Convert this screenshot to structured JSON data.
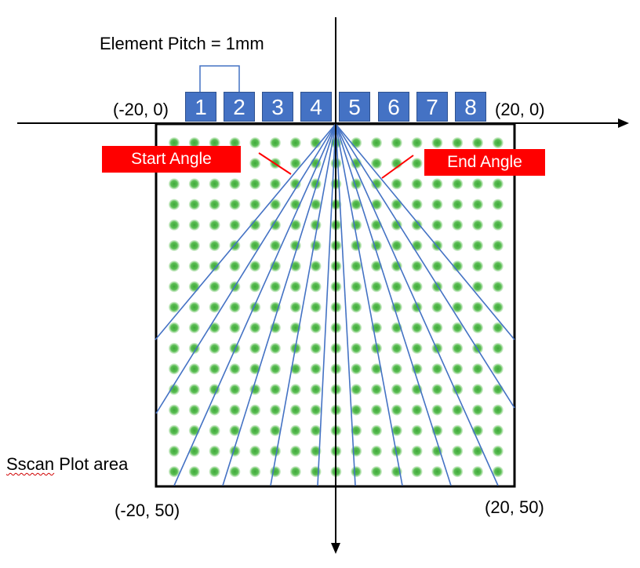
{
  "diagram": {
    "pitch_label": "Element Pitch = 1mm",
    "elements": [
      "1",
      "2",
      "3",
      "4",
      "5",
      "6",
      "7",
      "8"
    ],
    "coords": {
      "top_left": "(-20, 0)",
      "top_right": "(20, 0)",
      "bottom_left": "(-20, 50)",
      "bottom_right": "(20, 50)"
    },
    "start_angle_label": "Start Angle",
    "end_angle_label": "End Angle",
    "plot_area_label_prefix": "Sscan",
    "plot_area_label_suffix": " Plot area",
    "colors": {
      "element_fill": "#4472c4",
      "ray": "#4472c4",
      "angle_tag": "#ff0000",
      "grid_dot": "#5cb85c"
    }
  }
}
